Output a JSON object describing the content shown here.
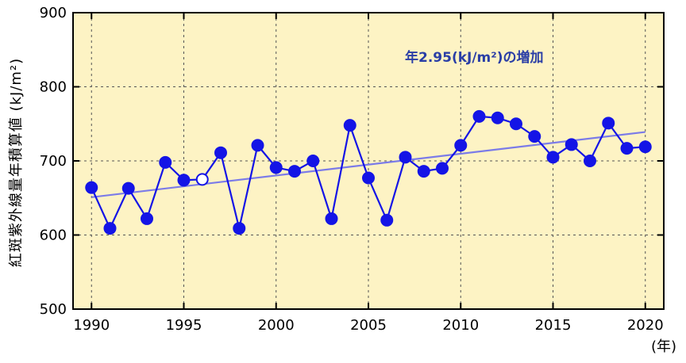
{
  "chart_data": {
    "type": "line",
    "title": "",
    "ylabel": "紅斑紫外線量年積算値 (kJ/m²)",
    "xlabel_unit": "(年)",
    "annotation": "年2.95(kJ/m²)の増加",
    "xlim": [
      1989,
      2021
    ],
    "ylim": [
      500,
      900
    ],
    "x_ticks": [
      "1990",
      "1995",
      "2000",
      "2005",
      "2010",
      "2015",
      "2020"
    ],
    "y_ticks": [
      "500",
      "600",
      "700",
      "800",
      "900"
    ],
    "grid": true,
    "colors": {
      "plot_background": "#fdf3c4",
      "series": "#1414e6",
      "trend": "#7b7be8",
      "annotation": "#2a3ea6"
    },
    "series": [
      {
        "x": [
          1990,
          1991,
          1992,
          1993,
          1994,
          1995,
          1996,
          1997,
          1998,
          1999,
          2000,
          2001,
          2002,
          2003,
          2004,
          2005,
          2006,
          2007,
          2008,
          2009,
          2010,
          2011,
          2012,
          2013,
          2014,
          2015,
          2016,
          2017,
          2018,
          2019,
          2020
        ],
        "values": [
          664,
          609,
          663,
          622,
          698,
          674,
          675,
          711,
          609,
          721,
          691,
          686,
          700,
          622,
          748,
          677,
          620,
          705,
          686,
          690,
          721,
          760,
          758,
          750,
          733,
          705,
          722,
          700,
          751,
          717,
          719
        ],
        "open_markers": [
          1996
        ]
      }
    ],
    "trend": {
      "x": [
        1990,
        2020
      ],
      "values": [
        651,
        739
      ]
    }
  }
}
